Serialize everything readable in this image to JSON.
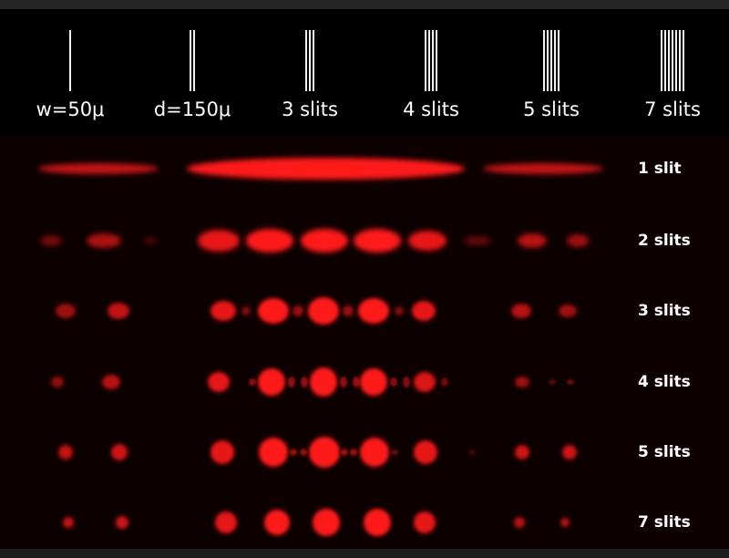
{
  "colors": {
    "background": "#000000",
    "pattern_background": "#0d0000",
    "spot": "#ff1a1a",
    "text": "#ffffff"
  },
  "columns": [
    {
      "label": "w=50μ",
      "slit_count": 1
    },
    {
      "label": "d=150μ",
      "slit_count": 2
    },
    {
      "label": "3 slits",
      "slit_count": 3
    },
    {
      "label": "4 slits",
      "slit_count": 4
    },
    {
      "label": "5 slits",
      "slit_count": 5
    },
    {
      "label": "7 slits",
      "slit_count": 7
    }
  ],
  "rows": [
    {
      "label": "1 slit"
    },
    {
      "label": "2 slits"
    },
    {
      "label": "3 slits"
    },
    {
      "label": "4 slits"
    },
    {
      "label": "5 slits"
    },
    {
      "label": "7 slits"
    }
  ]
}
